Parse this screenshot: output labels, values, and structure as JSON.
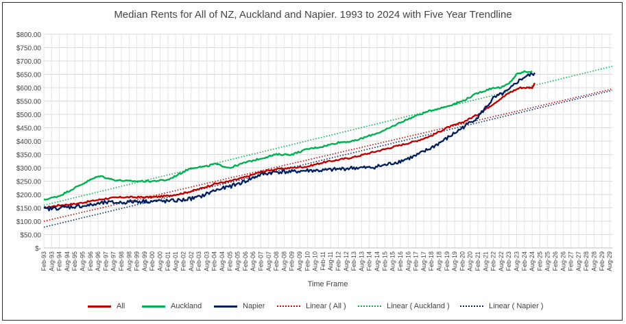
{
  "chart_data": {
    "type": "line",
    "title": "Median Rents for All of NZ, Auckland and Napier. 1993 to 2024 with Five Year Trendline",
    "xlabel": "Time Frame",
    "ylabel": "",
    "ylim": [
      0,
      800
    ],
    "y_ticks": [
      {
        "value": 800,
        "label": "$800.00"
      },
      {
        "value": 750,
        "label": "$750.00"
      },
      {
        "value": 700,
        "label": "$700.00"
      },
      {
        "value": 650,
        "label": "$650.00"
      },
      {
        "value": 600,
        "label": "$600.00"
      },
      {
        "value": 550,
        "label": "$550.00"
      },
      {
        "value": 500,
        "label": "$500.00"
      },
      {
        "value": 450,
        "label": "$450.00"
      },
      {
        "value": 400,
        "label": "$400.00"
      },
      {
        "value": 350,
        "label": "$350.00"
      },
      {
        "value": 300,
        "label": "$300.00"
      },
      {
        "value": 250,
        "label": "$250.00"
      },
      {
        "value": 200,
        "label": "$200.00"
      },
      {
        "value": 150,
        "label": "$150.00"
      },
      {
        "value": 100,
        "label": "$100.00"
      },
      {
        "value": 50,
        "label": "$50.00"
      },
      {
        "value": 0,
        "label": "$-"
      }
    ],
    "x_start_year": 1993,
    "x_end_year": 2029.67,
    "x_tick_labels": [
      "Feb-93",
      "Aug-93",
      "Feb-94",
      "Aug-94",
      "Feb-95",
      "Aug-95",
      "Feb-96",
      "Aug-96",
      "Feb-97",
      "Aug-97",
      "Feb-98",
      "Aug-98",
      "Feb-99",
      "Aug-99",
      "Feb-00",
      "Aug-00",
      "Feb-01",
      "Aug-01",
      "Feb-02",
      "Aug-02",
      "Feb-03",
      "Aug-03",
      "Feb-04",
      "Aug-04",
      "Feb-05",
      "Aug-05",
      "Feb-06",
      "Aug-06",
      "Feb-07",
      "Aug-07",
      "Feb-08",
      "Aug-08",
      "Feb-09",
      "Aug-09",
      "Feb-10",
      "Aug-10",
      "Feb-11",
      "Aug-11",
      "Feb-12",
      "Aug-12",
      "Feb-13",
      "Aug-13",
      "Feb-14",
      "Aug-14",
      "Feb-15",
      "Aug-15",
      "Feb-16",
      "Aug-16",
      "Feb-17",
      "Aug-17",
      "Feb-18",
      "Aug-18",
      "Feb-19",
      "Aug-19",
      "Feb-20",
      "Aug-20",
      "Feb-21",
      "Aug-21",
      "Feb-22",
      "Aug-22",
      "Feb-23",
      "Aug-23",
      "Feb-24",
      "Aug-24",
      "Feb-25",
      "Aug-25",
      "Feb-26",
      "Aug-26",
      "Feb-27",
      "Aug-27",
      "Feb-28",
      "Aug-28",
      "Feb-29",
      "Aug-29"
    ],
    "series": [
      {
        "name": "All",
        "style": "solid",
        "color": "#c00000",
        "points": [
          [
            1993.0,
            150
          ],
          [
            1994.0,
            160
          ],
          [
            1995.0,
            165
          ],
          [
            1996.0,
            175
          ],
          [
            1997.0,
            185
          ],
          [
            1998.0,
            190
          ],
          [
            1999.0,
            190
          ],
          [
            2000.0,
            190
          ],
          [
            2001.0,
            195
          ],
          [
            2002.0,
            205
          ],
          [
            2003.0,
            220
          ],
          [
            2004.0,
            240
          ],
          [
            2005.0,
            250
          ],
          [
            2006.0,
            265
          ],
          [
            2007.0,
            285
          ],
          [
            2008.0,
            295
          ],
          [
            2009.0,
            300
          ],
          [
            2010.0,
            305
          ],
          [
            2011.0,
            320
          ],
          [
            2012.0,
            330
          ],
          [
            2013.0,
            340
          ],
          [
            2014.0,
            355
          ],
          [
            2015.0,
            370
          ],
          [
            2016.0,
            385
          ],
          [
            2017.0,
            400
          ],
          [
            2018.0,
            420
          ],
          [
            2019.0,
            450
          ],
          [
            2020.0,
            470
          ],
          [
            2021.0,
            500
          ],
          [
            2022.0,
            540
          ],
          [
            2023.0,
            580
          ],
          [
            2023.7,
            600
          ],
          [
            2024.0,
            600
          ],
          [
            2024.5,
            600
          ],
          [
            2024.7,
            620
          ]
        ]
      },
      {
        "name": "Auckland",
        "style": "solid",
        "color": "#00b050",
        "points": [
          [
            1993.0,
            180
          ],
          [
            1994.0,
            195
          ],
          [
            1995.0,
            225
          ],
          [
            1996.0,
            255
          ],
          [
            1996.6,
            270
          ],
          [
            1997.5,
            255
          ],
          [
            1998.5,
            250
          ],
          [
            1999.0,
            250
          ],
          [
            2000.0,
            250
          ],
          [
            2001.0,
            255
          ],
          [
            2002.0,
            285
          ],
          [
            2002.5,
            300
          ],
          [
            2003.5,
            305
          ],
          [
            2004.0,
            315
          ],
          [
            2005.0,
            300
          ],
          [
            2006.0,
            320
          ],
          [
            2007.0,
            335
          ],
          [
            2008.0,
            350
          ],
          [
            2009.0,
            350
          ],
          [
            2010.0,
            370
          ],
          [
            2011.0,
            380
          ],
          [
            2012.0,
            395
          ],
          [
            2013.0,
            400
          ],
          [
            2014.0,
            420
          ],
          [
            2015.0,
            440
          ],
          [
            2016.0,
            470
          ],
          [
            2017.0,
            495
          ],
          [
            2018.0,
            515
          ],
          [
            2019.0,
            530
          ],
          [
            2020.0,
            550
          ],
          [
            2021.0,
            580
          ],
          [
            2022.0,
            600
          ],
          [
            2022.5,
            600
          ],
          [
            2023.0,
            615
          ],
          [
            2023.5,
            650
          ],
          [
            2024.0,
            660
          ],
          [
            2024.5,
            660
          ]
        ]
      },
      {
        "name": "Napier",
        "style": "solid",
        "color": "#002060",
        "points": [
          [
            1993.0,
            145
          ],
          [
            1994.0,
            150
          ],
          [
            1995.0,
            155
          ],
          [
            1996.0,
            160
          ],
          [
            1997.0,
            170
          ],
          [
            1998.0,
            170
          ],
          [
            1999.0,
            175
          ],
          [
            2000.0,
            175
          ],
          [
            2001.0,
            175
          ],
          [
            2002.0,
            180
          ],
          [
            2003.0,
            190
          ],
          [
            2004.0,
            215
          ],
          [
            2005.0,
            230
          ],
          [
            2006.0,
            250
          ],
          [
            2007.0,
            275
          ],
          [
            2008.0,
            285
          ],
          [
            2009.0,
            285
          ],
          [
            2010.0,
            290
          ],
          [
            2011.0,
            290
          ],
          [
            2012.0,
            295
          ],
          [
            2013.0,
            300
          ],
          [
            2014.0,
            300
          ],
          [
            2015.0,
            310
          ],
          [
            2016.0,
            325
          ],
          [
            2017.0,
            345
          ],
          [
            2018.0,
            375
          ],
          [
            2019.0,
            410
          ],
          [
            2020.0,
            450
          ],
          [
            2021.0,
            490
          ],
          [
            2022.0,
            560
          ],
          [
            2023.0,
            590
          ],
          [
            2023.5,
            620
          ],
          [
            2024.0,
            640
          ],
          [
            2024.5,
            650
          ],
          [
            2024.7,
            655
          ]
        ]
      },
      {
        "name": "Linear ( All )",
        "style": "dotted",
        "color": "#c00000",
        "points": [
          [
            1993.0,
            100
          ],
          [
            2029.67,
            595
          ]
        ]
      },
      {
        "name": "Linear ( Auckland )",
        "style": "dotted",
        "color": "#00b050",
        "points": [
          [
            1993.0,
            160
          ],
          [
            2029.67,
            680
          ]
        ]
      },
      {
        "name": "Linear ( Napier )",
        "style": "dotted",
        "color": "#002060",
        "points": [
          [
            1993.0,
            78
          ],
          [
            2029.67,
            590
          ]
        ]
      }
    ],
    "legend_position": "bottom"
  }
}
